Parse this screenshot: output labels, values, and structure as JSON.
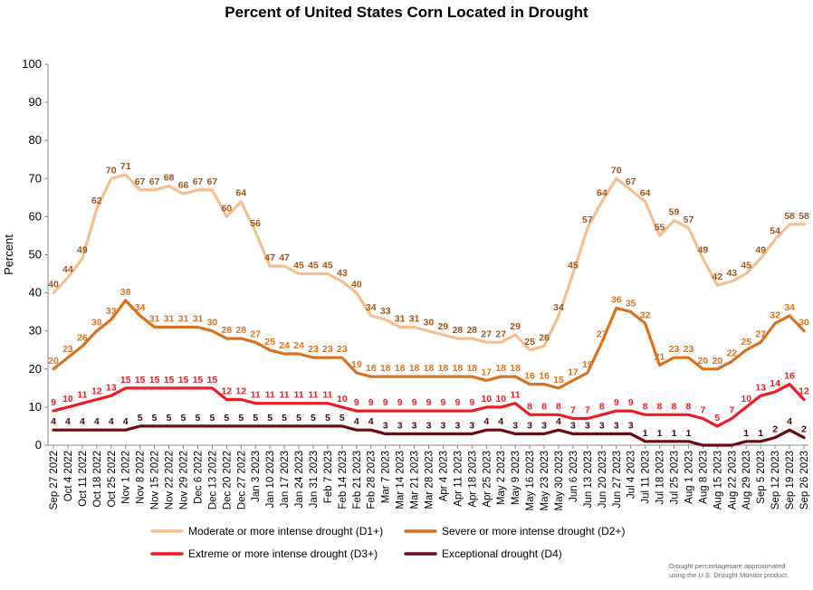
{
  "chart_data": {
    "type": "line",
    "title": "Percent of United States Corn Located in Drought",
    "ylabel": "Percent",
    "ylim": [
      0,
      100
    ],
    "yticks": [
      0,
      10,
      20,
      30,
      40,
      50,
      60,
      70,
      80,
      90,
      100
    ],
    "grid": false,
    "legend_position": "bottom",
    "x": [
      "Sep 27 2022",
      "Oct 4 2022",
      "Oct 11 2022",
      "Oct 18 2022",
      "Oct 25 2022",
      "Nov 1 2022",
      "Nov 8 2022",
      "Nov 15 2022",
      "Nov 22 2022",
      "Nov 29 2022",
      "Dec 6 2022",
      "Dec 13 2022",
      "Dec 20 2022",
      "Dec 27 2022",
      "Jan 3 2023",
      "Jan 10 2023",
      "Jan 17 2023",
      "Jan 24 2023",
      "Jan 31 2023",
      "Feb 7 2023",
      "Feb 14 2023",
      "Feb 21 2023",
      "Feb 28 2023",
      "Mar 7 2023",
      "Mar 14 2023",
      "Mar 21 2023",
      "Mar 28 2023",
      "Apr 4 2023",
      "Apr 11 2023",
      "Apr 18 2023",
      "Apr 25 2023",
      "May 2 2023",
      "May 9 2023",
      "May 16 2023",
      "May 23 2023",
      "May 30 2023",
      "Jun 6 2023",
      "Jun 13 2023",
      "Jun 20 2023",
      "Jun 27 2023",
      "Jul 4 2023",
      "Jul 11 2023",
      "Jul 18 2023",
      "Jul 25 2023",
      "Aug 1 2023",
      "Aug 8 2023",
      "Aug 15 2023",
      "Aug 22 2023",
      "Aug 29 2023",
      "Sep 5 2023",
      "Sep 12 2023",
      "Sep 19 2023",
      "Sep 26 2023"
    ],
    "xtick_labels": [
      "Sep 27 2022",
      "Oct 4 2022",
      "Oct 11 2022",
      "Oct 18 2022",
      "Oct 25 2022",
      "Nov 1 2022",
      "Nov 8 2022",
      "Nov 15 2022",
      "Nov 22 2022",
      "Nov 29 2022",
      "Dec 6 2022",
      "Dec 13 2022",
      "Dec 20 2022",
      "Dec 27 2022",
      "Jan 3 2023",
      "Jan 10 2023",
      "Jan 17 2023",
      "Jan 24 2023",
      "Jan 31 2023",
      "Feb 7 2023",
      "Feb 14 2023",
      "Feb 21 2023",
      "Feb 28 2023",
      "Mar 7 2023",
      "Mar 14 2023",
      "Mar 21 2023",
      "Mar 28 2023",
      "Apr 4 2023",
      "Apr 11 2023",
      "Apr 18 2023",
      "Apr 25 2023",
      "May 2 2023",
      "May 9 2023",
      "May 16 2023",
      "May 23 2023",
      "May 30 2023",
      "Jun 6 2023",
      "Jun 13 2023",
      "Jun 20 2023",
      "Jun 27 2023",
      "Jul 4 2023",
      "Jul 11 2023",
      "Jul 18 2023",
      "Jul 25 2023",
      "Aug 1 2023",
      "Aug 8 2023",
      "Aug 15 2023",
      "Aug 22 2023",
      "Aug 29 2023",
      "Sep 5 2023",
      "Sep 12 2023",
      "Sep 19 2023",
      "Sep 26 2023"
    ],
    "series": [
      {
        "name": "Moderate or more intense drought (D1+)",
        "color": "#F5BE8E",
        "label_color": "#A0561A",
        "values": [
          40,
          44,
          49,
          62,
          70,
          71,
          67,
          67,
          68,
          66,
          67,
          67,
          60,
          64,
          56,
          47,
          47,
          45,
          45,
          45,
          43,
          40,
          34,
          33,
          31,
          31,
          30,
          29,
          28,
          28,
          27,
          27,
          29,
          25,
          26,
          34,
          45,
          57,
          64,
          70,
          67,
          64,
          55,
          59,
          57,
          49,
          42,
          43,
          45,
          49,
          54,
          58,
          58
        ],
        "labels": [
          "40",
          "44",
          "49",
          "62",
          "70",
          "71",
          "67",
          "67",
          "68",
          "66",
          "67",
          "67",
          "60",
          "64",
          "56",
          "47",
          "47",
          "45",
          "45",
          "45",
          "43",
          "40",
          "34",
          "33",
          "31",
          "31",
          "30",
          "29",
          "28",
          "28",
          "27",
          "27",
          "29",
          "25",
          "26",
          "34",
          "45",
          "57",
          "64",
          "70",
          "67",
          "64",
          "55",
          "59",
          "57",
          "49",
          "42",
          "43",
          "45",
          "49",
          "54",
          "58",
          "58"
        ]
      },
      {
        "name": "Severe or more intense drought (D2+)",
        "color": "#D9721F",
        "label_color": "#D9721F",
        "values": [
          20,
          23,
          26,
          30,
          33,
          38,
          34,
          31,
          31,
          31,
          31,
          30,
          28,
          28,
          27,
          25,
          24,
          24,
          23,
          23,
          23,
          19,
          18,
          18,
          18,
          18,
          18,
          18,
          18,
          18,
          17,
          18,
          18,
          16,
          16,
          15,
          17,
          19,
          27,
          36,
          35,
          32,
          21,
          23,
          23,
          20,
          20,
          22,
          25,
          27,
          32,
          34,
          30
        ],
        "labels": [
          "20",
          "23",
          "26",
          "30",
          "33",
          "38",
          "34",
          "31",
          "31",
          "31",
          "31",
          "30",
          "28",
          "28",
          "27",
          "25",
          "24",
          "24",
          "23",
          "23",
          "23",
          "19",
          "18",
          "18",
          "18",
          "18",
          "18",
          "18",
          "18",
          "18",
          "17",
          "18",
          "18",
          "16",
          "16",
          "15",
          "17",
          "19",
          "27",
          "36",
          "35",
          "32",
          "21",
          "23",
          "23",
          "20",
          "20",
          "22",
          "25",
          "27",
          "32",
          "34",
          "30"
        ]
      },
      {
        "name": "Extreme or more intense drought (D3+)",
        "color": "#EE1C25",
        "label_color": "#EE1C25",
        "values": [
          9,
          10,
          11,
          12,
          13,
          15,
          15,
          15,
          15,
          15,
          15,
          15,
          12,
          12,
          11,
          11,
          11,
          11,
          11,
          11,
          10,
          9,
          9,
          9,
          9,
          9,
          9,
          9,
          9,
          9,
          10,
          10,
          11,
          8,
          8,
          8,
          7,
          7,
          8,
          9,
          9,
          8,
          8,
          8,
          8,
          7,
          5,
          7,
          10,
          13,
          14,
          16,
          12
        ],
        "labels": [
          "9",
          "10",
          "11",
          "12",
          "13",
          "15",
          "15",
          "15",
          "15",
          "15",
          "15",
          "15",
          "12",
          "12",
          "11",
          "11",
          "11",
          "11",
          "11",
          "11",
          "10",
          "9",
          "9",
          "9",
          "9",
          "9",
          "9",
          "9",
          "9",
          "9",
          "10",
          "10",
          "11",
          "8",
          "8",
          "8",
          "7",
          "7",
          "8",
          "9",
          "9",
          "8",
          "8",
          "8",
          "8",
          "7",
          "5",
          "7",
          "10",
          "13",
          "14",
          "16",
          "12"
        ]
      },
      {
        "name": "Exceptional drought (D4)",
        "color": "#6B0D0D",
        "label_color": "#4A0808",
        "values": [
          4,
          4,
          4,
          4,
          4,
          4,
          5,
          5,
          5,
          5,
          5,
          5,
          5,
          5,
          5,
          5,
          5,
          5,
          5,
          5,
          5,
          4,
          4,
          3,
          3,
          3,
          3,
          3,
          3,
          3,
          4,
          4,
          3,
          3,
          3,
          4,
          3,
          3,
          3,
          3,
          3,
          1,
          1,
          1,
          1,
          0,
          0,
          0,
          1,
          1,
          2,
          4,
          2
        ],
        "labels": [
          "4",
          "4",
          "4",
          "4",
          "4",
          "4",
          "5",
          "5",
          "5",
          "5",
          "5",
          "5",
          "5",
          "5",
          "5",
          "5",
          "5",
          "5",
          "5",
          "5",
          "5",
          "4",
          "4",
          "3",
          "3",
          "3",
          "3",
          "3",
          "3",
          "3",
          "4",
          "4",
          "3",
          "3",
          "3",
          "4",
          "3",
          "3",
          "3",
          "3",
          "3",
          "1",
          "1",
          "1",
          "1",
          "",
          "",
          "",
          "1",
          "1",
          "2",
          "4",
          "2"
        ]
      }
    ],
    "note": [
      "Drought percentagesare approximated",
      "using the U.S. Drought Monitor product."
    ]
  }
}
